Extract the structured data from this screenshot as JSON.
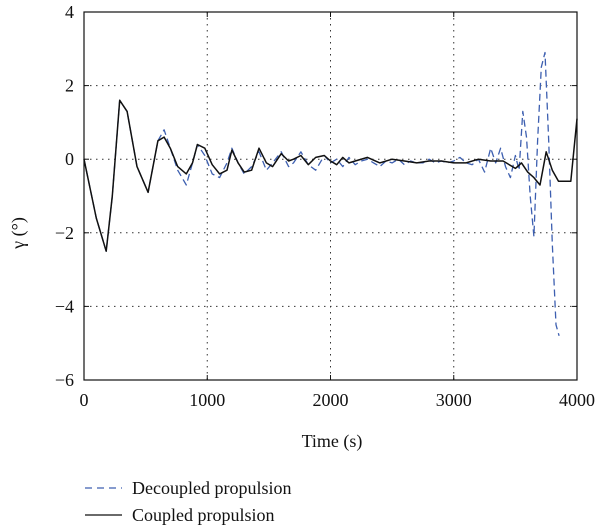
{
  "chart_data": {
    "type": "line",
    "title": "",
    "xlabel": "Time (s)",
    "ylabel": "γ (°)",
    "xlim": [
      0,
      4000
    ],
    "ylim": [
      -6,
      4
    ],
    "xticks": [
      0,
      1000,
      2000,
      3000,
      4000
    ],
    "yticks": [
      -6,
      -4,
      -2,
      0,
      2,
      4
    ],
    "xtick_labels": [
      "0",
      "1000",
      "2000",
      "3000",
      "4000"
    ],
    "ytick_labels": [
      "−6",
      "−4",
      "−2",
      "0",
      "2",
      "4"
    ],
    "grid": true,
    "legend_position": "bottom-left, below plot",
    "series": [
      {
        "name": "Decoupled propulsion",
        "color": "#3d5fb0",
        "style": "dashed",
        "x": [
          0,
          100,
          180,
          230,
          290,
          350,
          430,
          520,
          600,
          650,
          700,
          760,
          830,
          880,
          920,
          980,
          1040,
          1100,
          1160,
          1200,
          1250,
          1300,
          1360,
          1420,
          1480,
          1530,
          1600,
          1660,
          1700,
          1760,
          1820,
          1880,
          1950,
          2000,
          2050,
          2100,
          2150,
          2200,
          2250,
          2300,
          2350,
          2400,
          2450,
          2500,
          2550,
          2600,
          2650,
          2700,
          2750,
          2800,
          2850,
          2900,
          2950,
          3000,
          3050,
          3100,
          3150,
          3200,
          3250,
          3300,
          3340,
          3380,
          3420,
          3460,
          3500,
          3530,
          3560,
          3590,
          3620,
          3650,
          3680,
          3710,
          3740,
          3770,
          3800,
          3830,
          3855
        ],
        "y": [
          0,
          -1.6,
          -2.5,
          -1.0,
          1.6,
          1.3,
          -0.2,
          -0.9,
          0.5,
          0.8,
          0.3,
          -0.3,
          -0.7,
          -0.1,
          0.4,
          0.1,
          -0.4,
          -0.5,
          -0.1,
          0.3,
          -0.1,
          -0.4,
          -0.2,
          0.2,
          -0.3,
          -0.1,
          0.2,
          -0.2,
          -0.1,
          0.2,
          -0.15,
          -0.3,
          0.1,
          -0.1,
          0.0,
          -0.2,
          0.05,
          -0.15,
          -0.05,
          0.0,
          -0.1,
          -0.2,
          -0.05,
          -0.1,
          0.0,
          -0.15,
          -0.05,
          -0.1,
          -0.1,
          0.0,
          -0.1,
          -0.05,
          -0.1,
          -0.05,
          0.05,
          -0.1,
          -0.15,
          0.0,
          -0.35,
          0.3,
          -0.1,
          0.3,
          -0.2,
          -0.5,
          0.1,
          -0.3,
          1.3,
          0.6,
          -1.0,
          -2.1,
          0.5,
          2.5,
          2.9,
          0.5,
          -2.3,
          -4.5,
          -4.8
        ]
      },
      {
        "name": "Coupled propulsion",
        "color": "#111111",
        "style": "solid",
        "x": [
          0,
          100,
          180,
          230,
          290,
          350,
          430,
          520,
          600,
          650,
          700,
          760,
          830,
          880,
          920,
          980,
          1040,
          1100,
          1160,
          1200,
          1250,
          1300,
          1360,
          1420,
          1480,
          1530,
          1600,
          1660,
          1700,
          1760,
          1820,
          1880,
          1950,
          2000,
          2050,
          2100,
          2150,
          2200,
          2300,
          2400,
          2500,
          2600,
          2700,
          2800,
          2900,
          3000,
          3100,
          3200,
          3300,
          3400,
          3500,
          3550,
          3600,
          3650,
          3700,
          3750,
          3800,
          3850,
          3900,
          3950,
          4000
        ],
        "y": [
          0,
          -1.6,
          -2.5,
          -1.0,
          1.6,
          1.3,
          -0.2,
          -0.9,
          0.5,
          0.6,
          0.3,
          -0.2,
          -0.4,
          -0.1,
          0.4,
          0.3,
          -0.15,
          -0.4,
          -0.3,
          0.25,
          -0.1,
          -0.35,
          -0.3,
          0.3,
          -0.1,
          -0.2,
          0.15,
          -0.05,
          0.0,
          0.1,
          -0.15,
          0.05,
          0.1,
          -0.05,
          -0.15,
          0.05,
          -0.1,
          -0.05,
          0.05,
          -0.1,
          0.0,
          -0.05,
          -0.1,
          -0.05,
          -0.05,
          -0.1,
          -0.1,
          0.0,
          -0.05,
          -0.05,
          -0.25,
          -0.1,
          -0.35,
          -0.5,
          -0.7,
          0.2,
          -0.3,
          -0.6,
          -0.6,
          -0.6,
          1.1
        ]
      }
    ]
  }
}
